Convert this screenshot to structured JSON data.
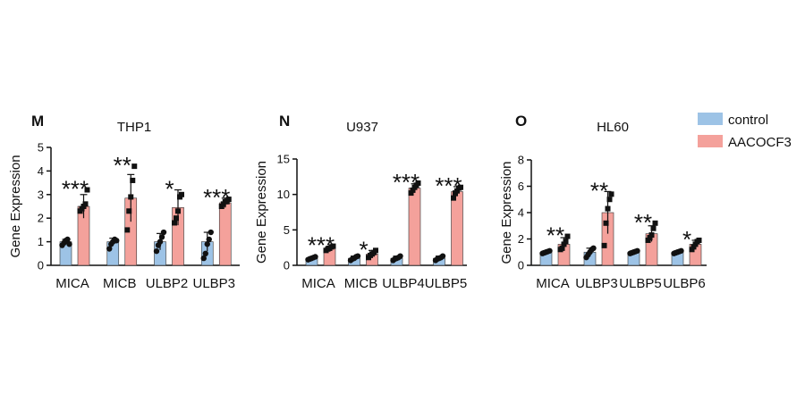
{
  "legend": {
    "items": [
      {
        "label": "control",
        "color": "#9dc3e6"
      },
      {
        "label": "AACOCF3",
        "color": "#f4a19b"
      }
    ]
  },
  "chart_data": [
    {
      "type": "bar",
      "panel": "M",
      "title": "THP1",
      "ylabel": "Gene Expression",
      "ylim": [
        0,
        5
      ],
      "yticks": [
        0,
        1,
        2,
        3,
        4,
        5
      ],
      "categories": [
        "MICA",
        "MICB",
        "ULBP2",
        "ULBP3"
      ],
      "series": [
        {
          "name": "control",
          "color": "#9dc3e6",
          "values": [
            1.0,
            1.0,
            1.0,
            1.0
          ],
          "errors": [
            0.1,
            0.15,
            0.35,
            0.4
          ],
          "points": [
            [
              0.85,
              0.95,
              1.05,
              1.1,
              0.9
            ],
            [
              0.7,
              0.9,
              1.0,
              1.1,
              1.05
            ],
            [
              0.6,
              0.85,
              1.0,
              1.2,
              1.4
            ],
            [
              0.3,
              0.5,
              0.9,
              1.1,
              1.4
            ]
          ]
        },
        {
          "name": "AACOCF3",
          "color": "#f4a19b",
          "values": [
            2.5,
            2.85,
            2.45,
            2.65
          ],
          "errors": [
            0.5,
            1.0,
            0.75,
            0.2
          ],
          "points": [
            [
              2.3,
              2.4,
              2.5,
              2.6,
              3.2
            ],
            [
              1.5,
              2.3,
              2.9,
              3.6,
              4.2
            ],
            [
              1.8,
              2.0,
              2.3,
              2.9,
              3.0
            ],
            [
              2.5,
              2.6,
              2.7,
              2.7,
              2.8
            ]
          ]
        }
      ],
      "annotations": [
        "***",
        "**",
        "*",
        "***"
      ]
    },
    {
      "type": "bar",
      "panel": "N",
      "title": "U937",
      "ylabel": "Gene Expression",
      "ylim": [
        0,
        15
      ],
      "yticks": [
        0,
        5,
        10,
        15
      ],
      "categories": [
        "MICA",
        "MICB",
        "ULBP4",
        "ULBP5"
      ],
      "series": [
        {
          "name": "control",
          "color": "#9dc3e6",
          "values": [
            1.0,
            1.0,
            1.0,
            1.0
          ],
          "errors": [
            0.2,
            0.3,
            0.3,
            0.3
          ],
          "points": [
            [
              0.8,
              0.9,
              1.0,
              1.1,
              1.2
            ],
            [
              0.7,
              0.9,
              1.0,
              1.2,
              1.3
            ],
            [
              0.7,
              0.9,
              1.0,
              1.1,
              1.3
            ],
            [
              0.7,
              0.9,
              1.0,
              1.1,
              1.3
            ]
          ]
        },
        {
          "name": "AACOCF3",
          "color": "#f4a19b",
          "values": [
            2.4,
            1.6,
            10.9,
            10.4
          ],
          "errors": [
            0.3,
            0.5,
            0.6,
            0.7
          ],
          "points": [
            [
              2.1,
              2.3,
              2.4,
              2.6,
              2.7
            ],
            [
              1.1,
              1.4,
              1.6,
              1.8,
              2.1
            ],
            [
              10.2,
              10.6,
              11.0,
              11.3,
              11.6
            ],
            [
              9.5,
              10.2,
              10.5,
              10.9,
              11.0
            ]
          ]
        }
      ],
      "annotations": [
        "***",
        "*",
        "***",
        "***"
      ]
    },
    {
      "type": "bar",
      "panel": "O",
      "title": "HL60",
      "ylabel": "Gene Expression",
      "ylim": [
        0,
        8
      ],
      "yticks": [
        0,
        2,
        4,
        6,
        8
      ],
      "categories": [
        "MICA",
        "ULBP3",
        "ULBP5",
        "ULBP6"
      ],
      "series": [
        {
          "name": "control",
          "color": "#9dc3e6",
          "values": [
            1.0,
            1.0,
            1.0,
            1.0
          ],
          "errors": [
            0.1,
            0.3,
            0.1,
            0.1
          ],
          "points": [
            [
              0.9,
              0.95,
              1.0,
              1.05,
              1.1
            ],
            [
              0.6,
              0.8,
              1.0,
              1.2,
              1.3
            ],
            [
              0.9,
              0.95,
              1.0,
              1.05,
              1.1
            ],
            [
              0.9,
              0.95,
              1.0,
              1.05,
              1.1
            ]
          ]
        },
        {
          "name": "AACOCF3",
          "color": "#f4a19b",
          "values": [
            1.6,
            4.0,
            2.4,
            1.6
          ],
          "errors": [
            0.5,
            1.6,
            0.6,
            0.3
          ],
          "points": [
            [
              1.2,
              1.3,
              1.6,
              1.8,
              2.2
            ],
            [
              1.5,
              3.2,
              4.3,
              5.0,
              5.4
            ],
            [
              1.9,
              2.1,
              2.3,
              2.8,
              3.2
            ],
            [
              1.2,
              1.4,
              1.6,
              1.8,
              1.9
            ]
          ]
        }
      ],
      "annotations": [
        "**",
        "**",
        "**",
        "*"
      ]
    }
  ]
}
